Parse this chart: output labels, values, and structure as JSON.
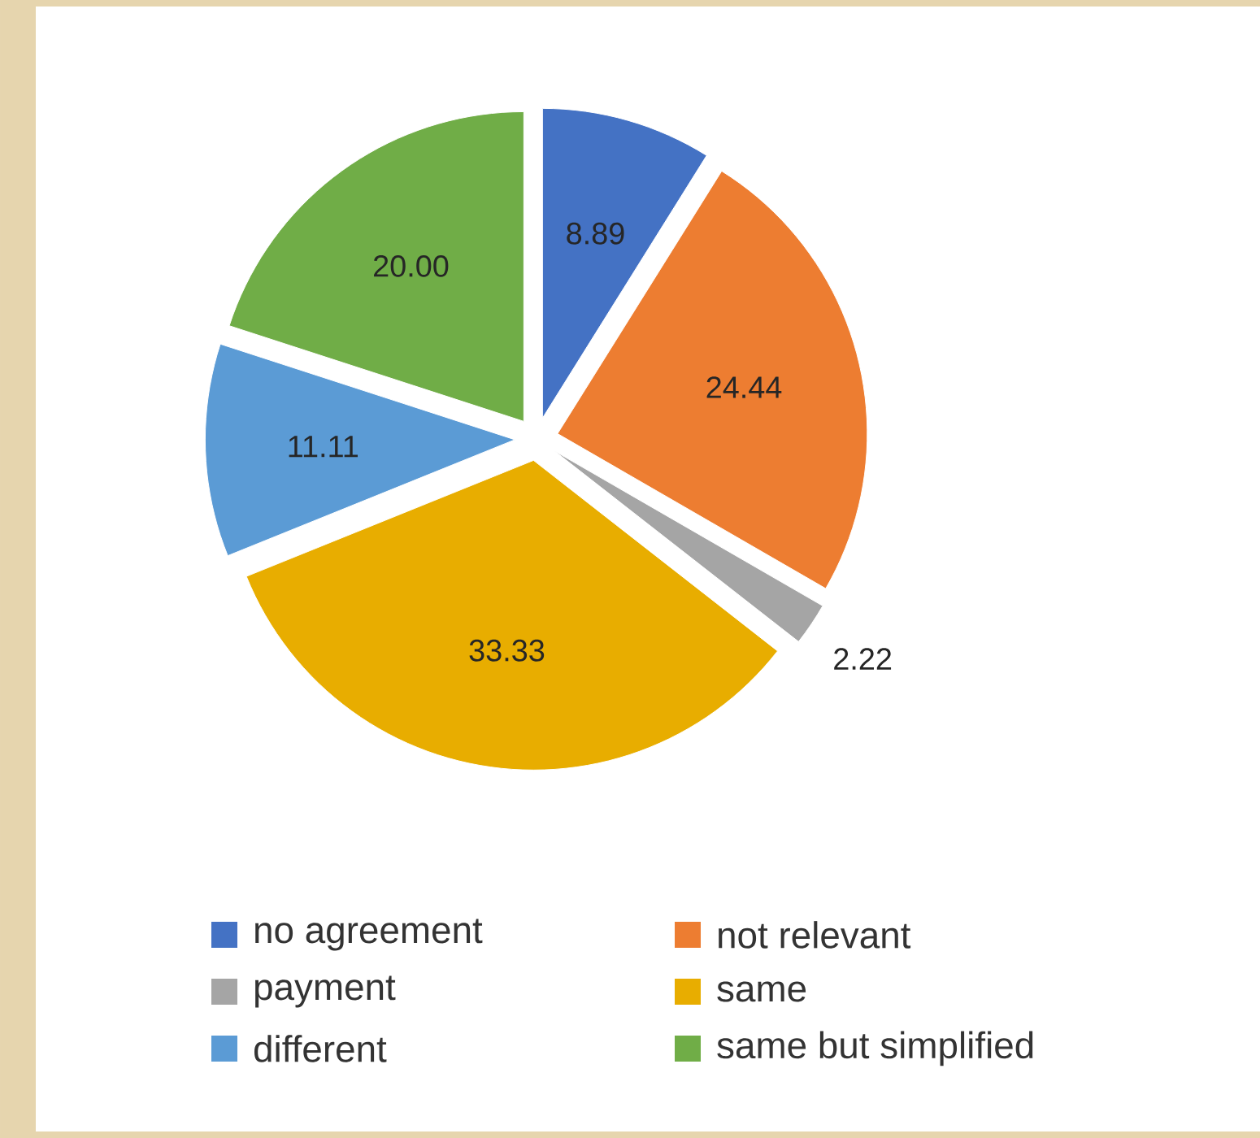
{
  "chart_data": {
    "type": "pie",
    "categories": [
      "no agreement",
      "not relevant",
      "payment",
      "same",
      "different",
      "same but simplified"
    ],
    "values": [
      8.89,
      24.44,
      2.22,
      33.33,
      11.11,
      20.0
    ],
    "value_labels": [
      "8.89",
      "24.44",
      "2.22",
      "33.33",
      "11.11",
      "20.00"
    ],
    "colors": [
      "#4472c4",
      "#ed7d31",
      "#a5a5a5",
      "#e8ad00",
      "#5b9bd5",
      "#70ad47"
    ],
    "legend": "bottom"
  }
}
